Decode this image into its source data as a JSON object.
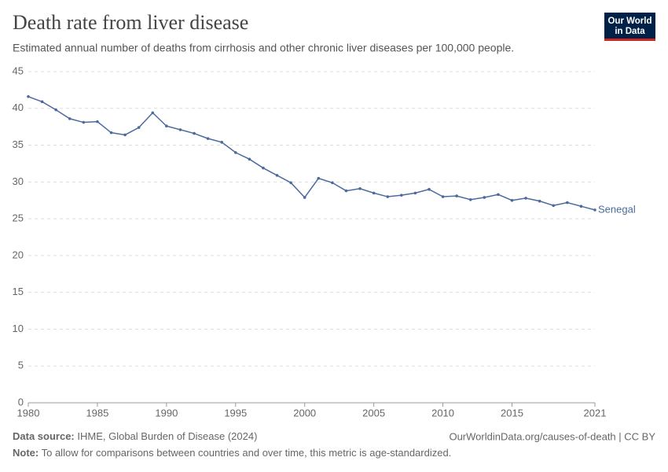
{
  "chart_data": {
    "type": "line",
    "title": "Death rate from liver disease",
    "subtitle": "Estimated annual number of deaths from cirrhosis and other chronic liver diseases per 100,000 people.",
    "logo": [
      "Our World",
      "in Data"
    ],
    "x": [
      1980,
      1981,
      1982,
      1983,
      1984,
      1985,
      1986,
      1987,
      1988,
      1989,
      1990,
      1991,
      1992,
      1993,
      1994,
      1995,
      1996,
      1997,
      1998,
      1999,
      2000,
      2001,
      2002,
      2003,
      2004,
      2005,
      2006,
      2007,
      2008,
      2009,
      2010,
      2011,
      2012,
      2013,
      2014,
      2015,
      2016,
      2017,
      2018,
      2019,
      2020,
      2021
    ],
    "series": [
      {
        "name": "Senegal",
        "color": "#4c6a9c",
        "values": [
          41.6,
          40.9,
          39.8,
          38.6,
          38.1,
          38.2,
          36.7,
          36.4,
          37.4,
          39.4,
          37.6,
          37.1,
          36.6,
          35.9,
          35.4,
          34.0,
          33.1,
          31.9,
          30.9,
          29.9,
          27.9,
          30.5,
          29.9,
          28.8,
          29.1,
          28.5,
          28.0,
          28.2,
          28.5,
          29.0,
          28.0,
          28.1,
          27.6,
          27.9,
          28.3,
          27.5,
          27.8,
          27.4,
          26.8,
          27.2,
          26.7,
          26.2
        ]
      }
    ],
    "xlim": [
      1980,
      2021
    ],
    "xticks": [
      1980,
      1985,
      1990,
      1995,
      2000,
      2005,
      2010,
      2015,
      2021
    ],
    "ylim": [
      0,
      45
    ],
    "yticks": [
      0,
      5,
      10,
      15,
      20,
      25,
      30,
      35,
      40,
      45
    ],
    "grid": true,
    "source_label": "Data source:",
    "source": "IHME, Global Burden of Disease (2024)",
    "url": "OurWorldinData.org/causes-of-death | CC BY",
    "note_label": "Note:",
    "note": "To allow for comparisons between countries and over time, this metric is age-standardized."
  }
}
